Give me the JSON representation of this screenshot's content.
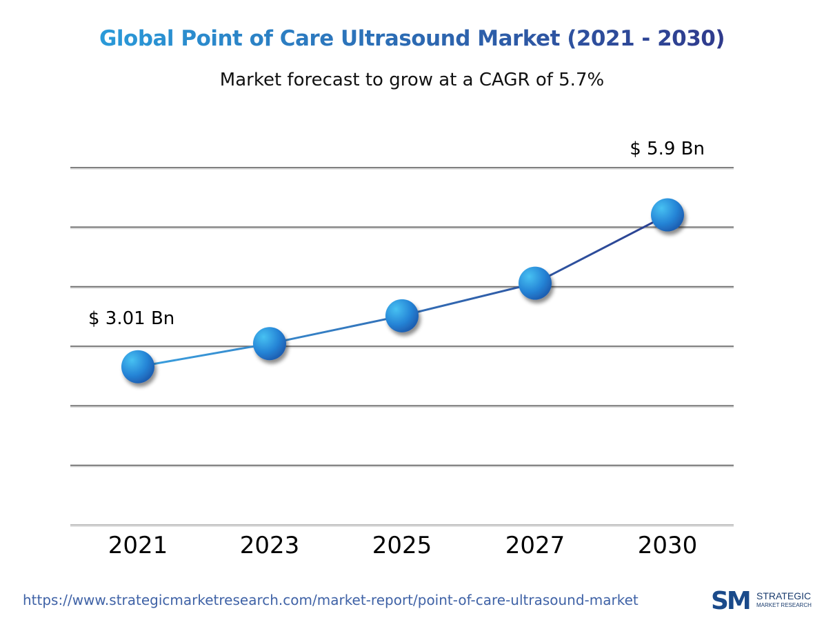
{
  "chart_data": {
    "type": "line",
    "title": "Global Point of Care Ultrasound Market  (2021 - 2030)",
    "subtitle": "Market forecast to grow at a CAGR of 5.7%",
    "categories": [
      "2021",
      "2023",
      "2025",
      "2027",
      "2030"
    ],
    "series": [
      {
        "values": [
          3.01,
          3.45,
          3.98,
          4.6,
          5.9
        ]
      }
    ],
    "data_labels": [
      "$ 3.01 Bn",
      "",
      "",
      "",
      "$ 5.9 Bn"
    ],
    "unit": "Bn",
    "ylim": [
      0,
      6.8
    ],
    "gridlines": 7,
    "grid": true,
    "colors": {
      "line_start": "#3aa0df",
      "line_end": "#2b3f8f",
      "marker": "#2a86d4",
      "title_start": "#2a9ad9",
      "title_end": "#2f3a8c"
    }
  },
  "footer": {
    "url": "https://www.strategicmarketresearch.com/market-report/point-of-care-ultrasound-market"
  },
  "logo": {
    "mark": "SM",
    "line1": "STRATEGIC",
    "line2": "MARKET RESEARCH"
  }
}
